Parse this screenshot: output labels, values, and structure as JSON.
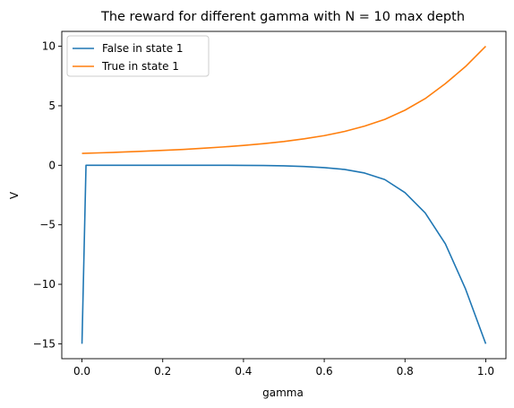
{
  "chart_data": {
    "type": "line",
    "title": "The reward for different gamma with N = 10 max depth",
    "xlabel": "gamma",
    "ylabel": "V",
    "xlim": [
      -0.05,
      1.05
    ],
    "ylim": [
      -16.25,
      11.25
    ],
    "xticks": [
      0.0,
      0.2,
      0.4,
      0.6,
      0.8,
      1.0
    ],
    "xtick_labels": [
      "0.0",
      "0.2",
      "0.4",
      "0.6",
      "0.8",
      "1.0"
    ],
    "yticks": [
      -15,
      -10,
      -5,
      0,
      5,
      10
    ],
    "ytick_labels": [
      "−15",
      "−10",
      "−5",
      "0",
      "5",
      "10"
    ],
    "grid": false,
    "legend_position": "top-left",
    "series": [
      {
        "name": "False in state 1",
        "color": "#1f77b4",
        "x": [
          0.0,
          0.01,
          0.05,
          0.1,
          0.15,
          0.2,
          0.25,
          0.3,
          0.35,
          0.4,
          0.45,
          0.5,
          0.55,
          0.6,
          0.65,
          0.7,
          0.75,
          0.8,
          0.85,
          0.9,
          0.95,
          1.0
        ],
        "y": [
          -15,
          0,
          0,
          0,
          0,
          0,
          0,
          0,
          0,
          -0.01,
          -0.02,
          -0.05,
          -0.1,
          -0.2,
          -0.35,
          -0.65,
          -1.2,
          -2.3,
          -4.0,
          -6.6,
          -10.4,
          -15
        ]
      },
      {
        "name": "True in state 1",
        "color": "#ff7f0e",
        "x": [
          0.0,
          0.05,
          0.1,
          0.15,
          0.2,
          0.25,
          0.3,
          0.35,
          0.4,
          0.45,
          0.5,
          0.55,
          0.6,
          0.65,
          0.7,
          0.75,
          0.8,
          0.85,
          0.9,
          0.95,
          1.0
        ],
        "y": [
          1.0,
          1.05,
          1.11,
          1.18,
          1.25,
          1.33,
          1.43,
          1.54,
          1.67,
          1.82,
          2.0,
          2.22,
          2.49,
          2.84,
          3.29,
          3.86,
          4.63,
          5.6,
          6.86,
          8.3,
          10.0
        ]
      }
    ]
  }
}
